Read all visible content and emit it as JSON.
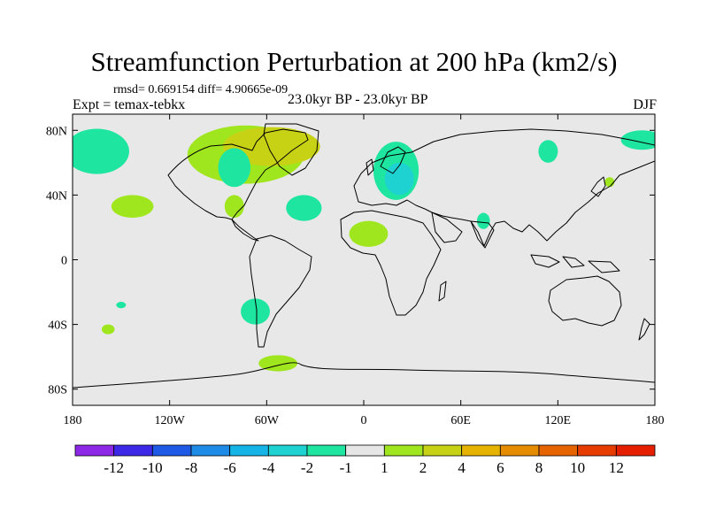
{
  "title": "Streamfunction Perturbation at 200 hPa (km2/s)",
  "stats": "rmsd= 0.669154 diff= 4.90665e-09",
  "experiment": "Expt = temax-tebkx",
  "period": "23.0kyr BP - 23.0kyr BP",
  "season": "DJF",
  "background_color": "#e8e8e8",
  "y_ticks": [
    "80N",
    "40N",
    "0",
    "40S",
    "80S"
  ],
  "x_ticks": [
    "180",
    "120W",
    "60W",
    "0",
    "60E",
    "120E",
    "180"
  ],
  "colorbar": {
    "colors": [
      "#8c28e6",
      "#3c28e6",
      "#1e5ae6",
      "#1e8ce6",
      "#14b4e6",
      "#1ed2d2",
      "#1ee6a0",
      "#e6e6e6",
      "#a0e61e",
      "#c8d214",
      "#e6b400",
      "#e68c00",
      "#e66400",
      "#e63c00",
      "#e61e00"
    ],
    "labels": [
      "-12",
      "-10",
      "-8",
      "-6",
      "-4",
      "-2",
      "-1",
      "1",
      "2",
      "4",
      "6",
      "8",
      "10",
      "12"
    ]
  },
  "anomalies": [
    {
      "lon": -165,
      "lat": 67,
      "rlon": 20,
      "rlat": 14,
      "color": "#1ee6a0"
    },
    {
      "lon": -143,
      "lat": 33,
      "rlon": 13,
      "rlat": 7,
      "color": "#a0e61e"
    },
    {
      "lon": -73,
      "lat": 65,
      "rlon": 36,
      "rlat": 18,
      "color": "#a0e61e"
    },
    {
      "lon": -57,
      "lat": 70,
      "rlon": 30,
      "rlat": 12,
      "color": "#c8d214"
    },
    {
      "lon": -80,
      "lat": 57,
      "rlon": 10,
      "rlat": 12,
      "color": "#1ee6a0"
    },
    {
      "lon": -80,
      "lat": 33,
      "rlon": 6,
      "rlat": 7,
      "color": "#a0e61e"
    },
    {
      "lon": -37,
      "lat": 32,
      "rlon": 11,
      "rlat": 8,
      "color": "#1ee6a0"
    },
    {
      "lon": 3,
      "lat": 16,
      "rlon": 12,
      "rlat": 8,
      "color": "#a0e61e"
    },
    {
      "lon": 20,
      "lat": 55,
      "rlon": 14,
      "rlat": 18,
      "color": "#1ee6a0"
    },
    {
      "lon": 22,
      "lat": 50,
      "rlon": 9,
      "rlat": 10,
      "color": "#1ed2d2"
    },
    {
      "lon": 74,
      "lat": 24,
      "rlon": 4,
      "rlat": 5,
      "color": "#1ee6a0"
    },
    {
      "lon": 114,
      "lat": 67,
      "rlon": 6,
      "rlat": 7,
      "color": "#1ee6a0"
    },
    {
      "lon": 152,
      "lat": 48,
      "rlon": 3,
      "rlat": 3,
      "color": "#a0e61e"
    },
    {
      "lon": 172,
      "lat": 74,
      "rlon": 13,
      "rlat": 6,
      "color": "#1ee6a0"
    },
    {
      "lon": -67,
      "lat": -32,
      "rlon": 9,
      "rlat": 8,
      "color": "#1ee6a0"
    },
    {
      "lon": -150,
      "lat": -28,
      "rlon": 3,
      "rlat": 2,
      "color": "#1ee6a0"
    },
    {
      "lon": -158,
      "lat": -43,
      "rlon": 4,
      "rlat": 3,
      "color": "#a0e61e"
    },
    {
      "lon": -53,
      "lat": -64,
      "rlon": 12,
      "rlat": 5,
      "color": "#a0e61e"
    }
  ]
}
